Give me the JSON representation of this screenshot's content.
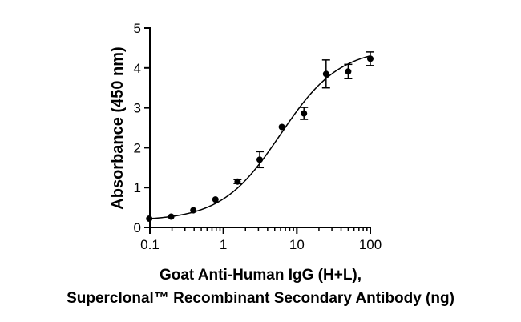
{
  "chart_data": {
    "type": "scatter",
    "xscale": "log",
    "xlim": [
      0.1,
      100
    ],
    "ylim": [
      0,
      5
    ],
    "xticks": [
      0.1,
      1,
      10,
      100
    ],
    "xtick_labels": [
      "0.1",
      "1",
      "10",
      "100"
    ],
    "yticks": [
      0,
      1,
      2,
      3,
      4,
      5
    ],
    "ytick_labels": [
      "0",
      "1",
      "2",
      "3",
      "4",
      "5"
    ],
    "ylabel": "Absorbance (450 nm)",
    "xlabel_line1": "Goat Anti-Human IgG (H+L),",
    "xlabel_line2": "Superclonal™ Recombinant Secondary Antibody (ng)",
    "grid": false,
    "legend": "none",
    "color": "#000000",
    "points": [
      {
        "x": 0.098,
        "y": 0.22,
        "err": 0.0
      },
      {
        "x": 0.195,
        "y": 0.27,
        "err": 0.0
      },
      {
        "x": 0.39,
        "y": 0.43,
        "err": 0.0
      },
      {
        "x": 0.78,
        "y": 0.7,
        "err": 0.0
      },
      {
        "x": 1.56,
        "y": 1.15,
        "err": 0.05
      },
      {
        "x": 3.125,
        "y": 1.7,
        "err": 0.2
      },
      {
        "x": 6.25,
        "y": 2.52,
        "err": 0.0
      },
      {
        "x": 12.5,
        "y": 2.86,
        "err": 0.15
      },
      {
        "x": 25,
        "y": 3.85,
        "err": 0.35
      },
      {
        "x": 50,
        "y": 3.91,
        "err": 0.18
      },
      {
        "x": 100,
        "y": 4.23,
        "err": 0.17
      }
    ],
    "fit": {
      "bottom": 0.17,
      "top": 4.5,
      "ec50": 6.0,
      "hill": 1.08
    }
  }
}
